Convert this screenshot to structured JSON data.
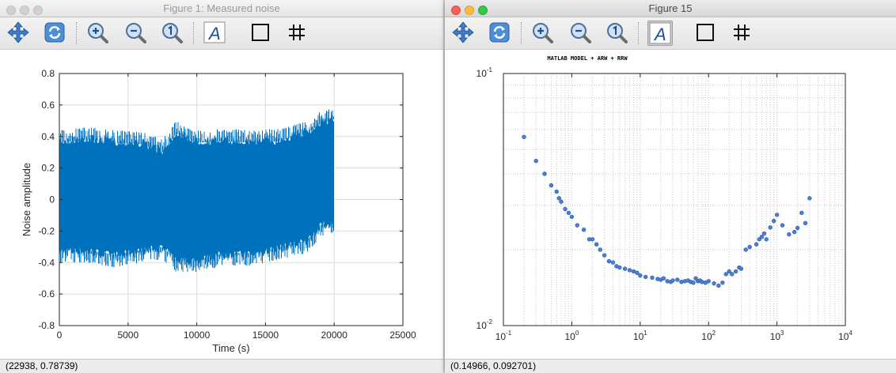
{
  "window1": {
    "title": "Figure 1: Measured noise",
    "status": "(22938, 0.78739)",
    "toolbar": [
      "pan-icon",
      "rotate-icon",
      "zoom-in-icon",
      "zoom-out-icon",
      "zoom-reset-icon",
      "text-icon",
      "box-icon",
      "grid-icon"
    ],
    "chart_data": {
      "type": "scatter",
      "title": "",
      "xlabel": "Time (s)",
      "ylabel": "Noise amplitude",
      "xlim": [
        0,
        25000
      ],
      "ylim": [
        -0.8,
        0.8
      ],
      "xticks": [
        "0",
        "5000",
        "10000",
        "15000",
        "20000",
        "25000"
      ],
      "yticks": [
        "-0.8",
        "-0.6",
        "-0.4",
        "-0.2",
        "0",
        "0.2",
        "0.4",
        "0.6",
        "0.8"
      ],
      "grid": true,
      "color": "#0072bd",
      "envelope": {
        "x": [
          0,
          2000,
          4000,
          6000,
          7500,
          8500,
          10000,
          12000,
          14000,
          16000,
          18000,
          19000,
          20000
        ],
        "upper": [
          0.44,
          0.46,
          0.44,
          0.43,
          0.38,
          0.5,
          0.44,
          0.45,
          0.44,
          0.45,
          0.5,
          0.56,
          0.59
        ],
        "lower": [
          -0.4,
          -0.4,
          -0.43,
          -0.4,
          -0.38,
          -0.46,
          -0.46,
          -0.42,
          -0.42,
          -0.38,
          -0.34,
          -0.24,
          -0.22
        ]
      }
    }
  },
  "window2": {
    "title": "Figure 15",
    "status": "(0.14966, 0.092701)",
    "toolbar": [
      "pan-icon",
      "rotate-icon",
      "zoom-in-icon",
      "zoom-out-icon",
      "zoom-reset-icon",
      "text-icon",
      "box-icon",
      "grid-icon"
    ],
    "chart_data": {
      "type": "scatter",
      "title": "MATLAB MODEL + ARW + RRW",
      "xscale": "log",
      "yscale": "log",
      "xlim": [
        0.1,
        10000
      ],
      "ylim": [
        0.01,
        0.1
      ],
      "xticks": [
        "10-1",
        "100",
        "101",
        "102",
        "103",
        "104"
      ],
      "yticks": [
        "10-2",
        "10-1"
      ],
      "grid": true,
      "color": "#4a7fd4",
      "x": [
        0.2,
        0.3,
        0.4,
        0.5,
        0.6,
        0.65,
        0.7,
        0.8,
        0.9,
        1.0,
        1.2,
        1.5,
        1.8,
        2.0,
        2.3,
        2.6,
        3.0,
        3.5,
        4.0,
        4.5,
        5.0,
        6.0,
        7.0,
        8.0,
        9.0,
        10,
        12,
        15,
        18,
        20,
        22,
        25,
        28,
        30,
        35,
        40,
        45,
        50,
        55,
        60,
        65,
        70,
        75,
        80,
        90,
        100,
        120,
        140,
        160,
        180,
        200,
        220,
        250,
        280,
        300,
        350,
        400,
        500,
        550,
        600,
        650,
        700,
        800,
        900,
        1000,
        1200,
        1500,
        1800,
        2000,
        2300,
        2600,
        3000
      ],
      "y": [
        0.056,
        0.045,
        0.04,
        0.036,
        0.034,
        0.032,
        0.031,
        0.029,
        0.028,
        0.027,
        0.025,
        0.024,
        0.022,
        0.022,
        0.021,
        0.02,
        0.019,
        0.018,
        0.0178,
        0.0172,
        0.017,
        0.0168,
        0.0166,
        0.0164,
        0.0162,
        0.0158,
        0.0156,
        0.0155,
        0.0153,
        0.0152,
        0.0154,
        0.015,
        0.0149,
        0.0151,
        0.0152,
        0.0149,
        0.015,
        0.0151,
        0.0149,
        0.0148,
        0.0154,
        0.015,
        0.0151,
        0.0149,
        0.0148,
        0.015,
        0.0147,
        0.0144,
        0.0148,
        0.016,
        0.0164,
        0.016,
        0.0164,
        0.017,
        0.0168,
        0.02,
        0.0205,
        0.021,
        0.022,
        0.0225,
        0.0232,
        0.022,
        0.0245,
        0.026,
        0.0275,
        0.025,
        0.023,
        0.0235,
        0.0244,
        0.028,
        0.0255,
        0.032
      ]
    }
  }
}
